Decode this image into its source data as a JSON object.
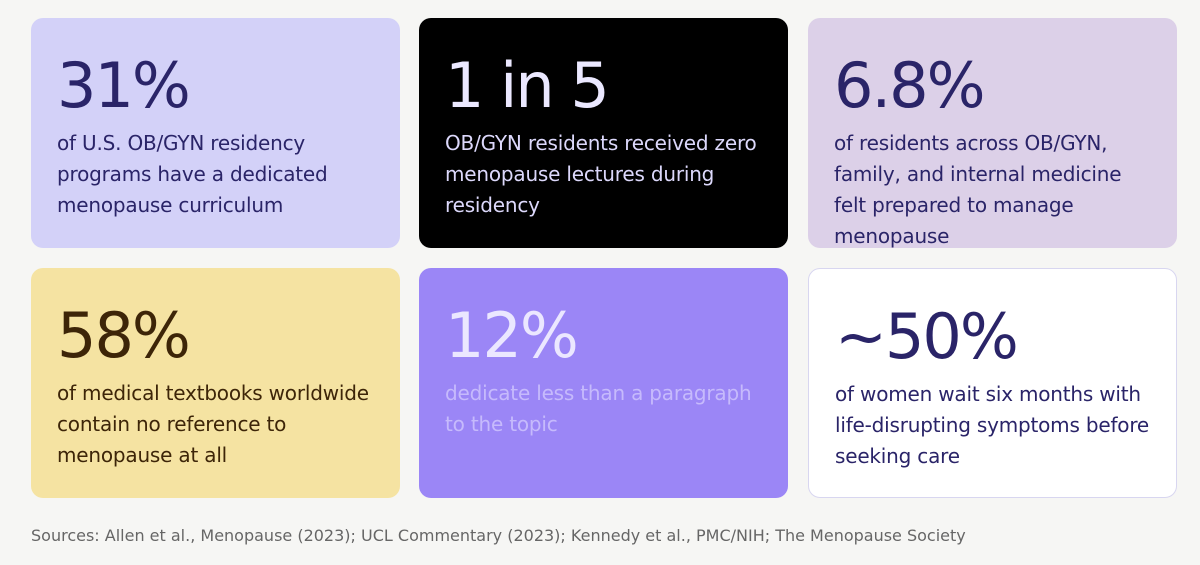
{
  "cards": [
    {
      "stat": "31%",
      "text": "of U.S. OB/GYN residency programs have a dedicated menopause curriculum"
    },
    {
      "stat": "1 in 5",
      "text": "OB/GYN residents received zero menopause lectures during residency"
    },
    {
      "stat": "6.8%",
      "text": "of residents across OB/GYN, family, and internal medicine felt prepared to manage menopause"
    },
    {
      "stat": "58%",
      "text": "of medical textbooks worldwide contain no reference to menopause at all"
    },
    {
      "stat": "12%",
      "text": "dedicate less than a paragraph to the topic"
    },
    {
      "stat": "~50%",
      "text": "of women wait six months with life-disrupting symptoms before seeking care"
    }
  ],
  "sources": "Sources: Allen et al., Menopause (2023); UCL Commentary (2023); Kennedy et al., PMC/NIH; The Menopause Society"
}
